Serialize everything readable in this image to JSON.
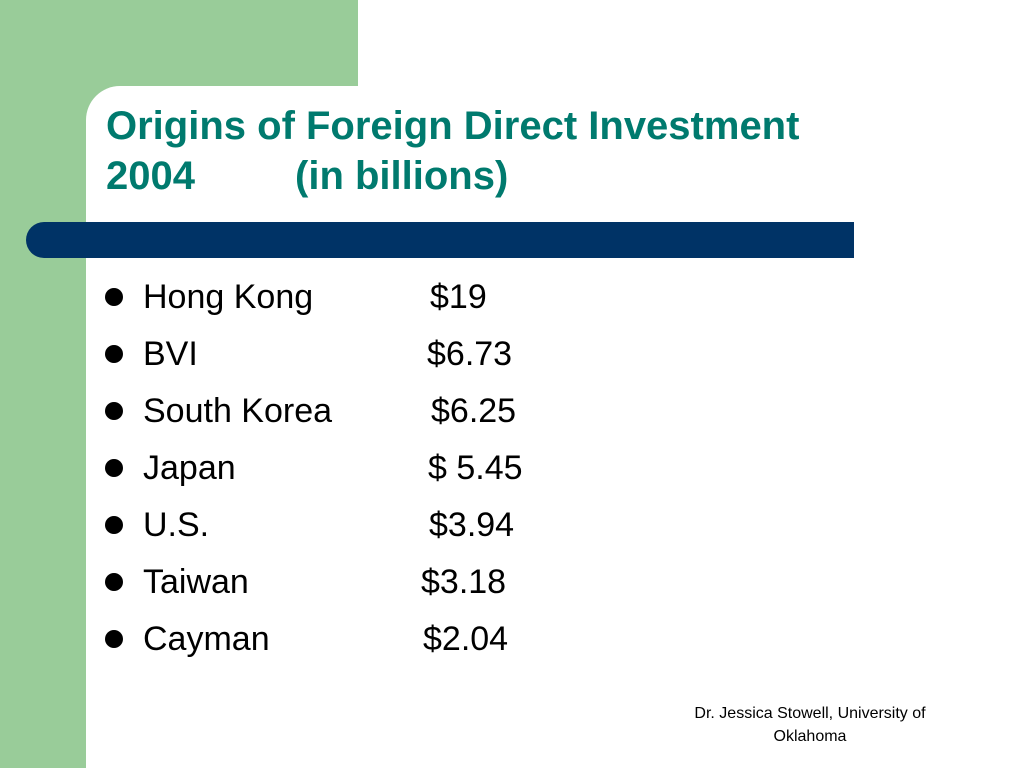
{
  "slide": {
    "title_line_1": "Origins of Foreign Direct Investment",
    "title_line_2": "2004         (in billions)",
    "items": [
      {
        "country": "Hong Kong",
        "amount": "$19"
      },
      {
        "country": "BVI",
        "amount": "$6.73"
      },
      {
        "country": "South Korea",
        "amount": "$6.25"
      },
      {
        "country": "Japan",
        "amount": "$ 5.45"
      },
      {
        "country": "U.S.",
        "amount": "$3.94"
      },
      {
        "country": "Taiwan",
        "amount": "$3.18"
      },
      {
        "country": "Cayman",
        "amount": "$2.04"
      }
    ],
    "footer_line_1": "Dr. Jessica Stowell, University of",
    "footer_line_2": "Oklahoma"
  },
  "colors": {
    "sidebar_green": "#99cc99",
    "title_teal": "#007a6e",
    "rule_navy": "#003366"
  }
}
